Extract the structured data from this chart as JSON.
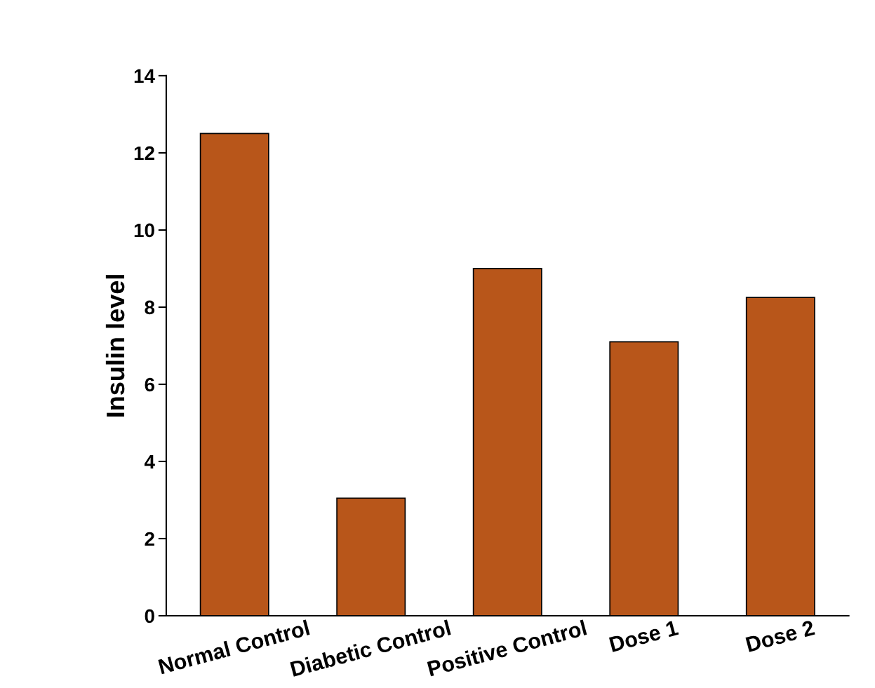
{
  "chart_data": {
    "type": "bar",
    "ylabel": "Insulin level",
    "categories": [
      "Normal Control",
      "Diabetic Control",
      "Positive Control",
      "Dose 1",
      "Dose 2"
    ],
    "values": [
      12.5,
      3.05,
      9.0,
      7.1,
      8.25
    ],
    "color": "#b8561a",
    "ylim": [
      0,
      14
    ],
    "yticks": [
      0,
      2,
      4,
      6,
      8,
      10,
      12,
      14
    ],
    "grid": false,
    "legend": false
  }
}
